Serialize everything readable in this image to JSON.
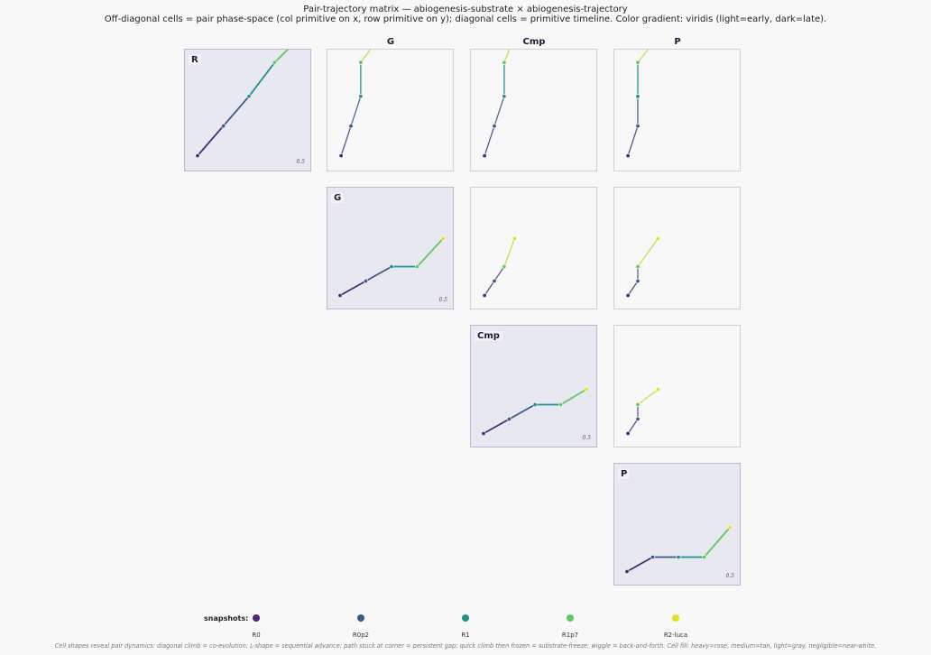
{
  "title": "Pair-trajectory matrix — abiogenesis-substrate × abiogenesis-trajectory",
  "subtitle": "Off-diagonal cells = pair phase-space (col primitive on x, row primitive on y); diagonal cells = primitive timeline. Color gradient: viridis (light=early, dark=late).",
  "footnote": "Cell shapes reveal pair dynamics: diagonal climb = co-evolution; L-shape = sequential advance; path stuck at corner = persistent gap; quick climb then frozen = substrate-freeze; wiggle = back-and-forth. Cell fill: heavy=rose, medium=tan, light=gray, negligible=near-white.",
  "legend": {
    "title": "snapshots:",
    "items": [
      {
        "label": "R0",
        "color": "#472a7a"
      },
      {
        "label": "R0p2",
        "color": "#3b5a8c"
      },
      {
        "label": "R1",
        "color": "#21918c"
      },
      {
        "label": "R1p7",
        "color": "#5ec962"
      },
      {
        "label": "R2-luca",
        "color": "#dde318"
      }
    ]
  },
  "colors": {
    "diag_bg": "#e8e8f0",
    "offdiag_bg": "#f8f8f8",
    "seg": [
      "#472a7a",
      "#3b5a8c",
      "#21918c",
      "#5ec962"
    ],
    "offdiag_seg": [
      "#5c4d8a",
      "#4b6b94",
      "#21918c",
      "#c8e04a"
    ]
  },
  "chart_data": {
    "type": "line",
    "primitives": [
      "R",
      "G",
      "Cmp",
      "P"
    ],
    "snapshots": [
      "R0",
      "R0p2",
      "R1",
      "R1p7",
      "R2-luca"
    ],
    "diag_tick_label": "0.5",
    "values": {
      "R": [
        0.1,
        0.45,
        0.8,
        1.2,
        1.5
      ],
      "G": [
        0.08,
        0.25,
        0.42,
        0.42,
        0.75
      ],
      "Cmp": [
        0.08,
        0.25,
        0.42,
        0.42,
        0.6
      ],
      "P": [
        0.08,
        0.25,
        0.25,
        0.25,
        0.6
      ]
    },
    "cells": [
      {
        "row": "R",
        "col": "R",
        "kind": "timeline",
        "label": "R"
      },
      {
        "row": "R",
        "col": "G",
        "kind": "pair"
      },
      {
        "row": "R",
        "col": "Cmp",
        "kind": "pair"
      },
      {
        "row": "R",
        "col": "P",
        "kind": "pair"
      },
      {
        "row": "G",
        "col": "G",
        "kind": "timeline",
        "label": "G"
      },
      {
        "row": "G",
        "col": "Cmp",
        "kind": "pair"
      },
      {
        "row": "G",
        "col": "P",
        "kind": "pair"
      },
      {
        "row": "Cmp",
        "col": "Cmp",
        "kind": "timeline",
        "label": "Cmp"
      },
      {
        "row": "Cmp",
        "col": "P",
        "kind": "pair"
      },
      {
        "row": "P",
        "col": "P",
        "kind": "timeline",
        "label": "P"
      }
    ],
    "xlim": [
      0,
      1
    ],
    "ylim": [
      0,
      1
    ],
    "legend_position": "bottom"
  }
}
